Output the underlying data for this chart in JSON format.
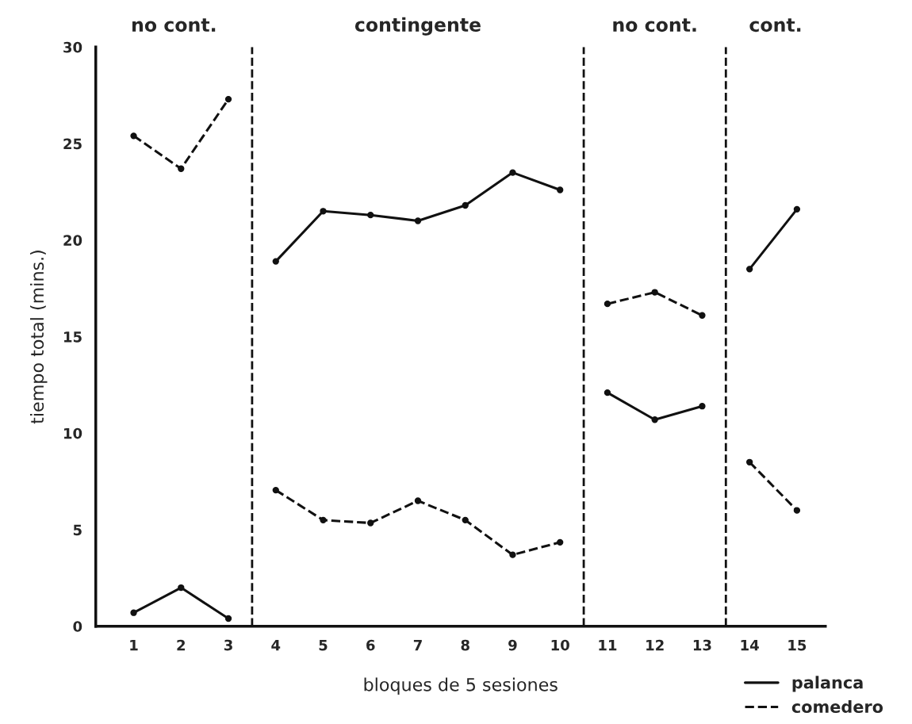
{
  "chart_data": {
    "type": "line",
    "xlabel": "bloques de 5 sesiones",
    "ylabel": "tiempo total (mins.)",
    "x": [
      1,
      2,
      3,
      4,
      5,
      6,
      7,
      8,
      9,
      10,
      11,
      12,
      13,
      14,
      15
    ],
    "series": [
      {
        "name": "palanca",
        "color": "#111111",
        "line_style": "solid",
        "values": [
          0.7,
          2.0,
          0.4,
          18.9,
          21.5,
          21.3,
          21.0,
          21.8,
          23.5,
          22.6,
          12.1,
          10.7,
          11.4,
          18.5,
          21.6
        ]
      },
      {
        "name": "comedero",
        "color": "#111111",
        "line_style": "dashed",
        "values": [
          25.4,
          23.7,
          27.3,
          7.05,
          5.5,
          5.35,
          6.5,
          5.5,
          3.7,
          4.35,
          16.7,
          17.3,
          16.1,
          8.5,
          6.0
        ]
      }
    ],
    "ref_lines": [
      {
        "axis": "x",
        "value": 3.5,
        "line_style": "dashed",
        "color": "#111111"
      },
      {
        "axis": "x",
        "value": 10.5,
        "line_style": "dashed",
        "color": "#111111"
      },
      {
        "axis": "x",
        "value": 13.5,
        "line_style": "dashed",
        "color": "#111111"
      }
    ],
    "annotations": [
      "no cont.",
      "contingente",
      "no cont.",
      "cont."
    ],
    "xlim": [
      0.2,
      15.6
    ],
    "xticks": [
      1,
      2,
      3,
      4,
      5,
      6,
      7,
      8,
      9,
      10,
      11,
      12,
      13,
      14,
      15
    ],
    "ylim": [
      0,
      30
    ],
    "yticks": [
      0,
      5,
      10,
      15,
      20,
      25,
      30
    ],
    "marker": "circle",
    "grid": false,
    "legend": "bottom right"
  }
}
